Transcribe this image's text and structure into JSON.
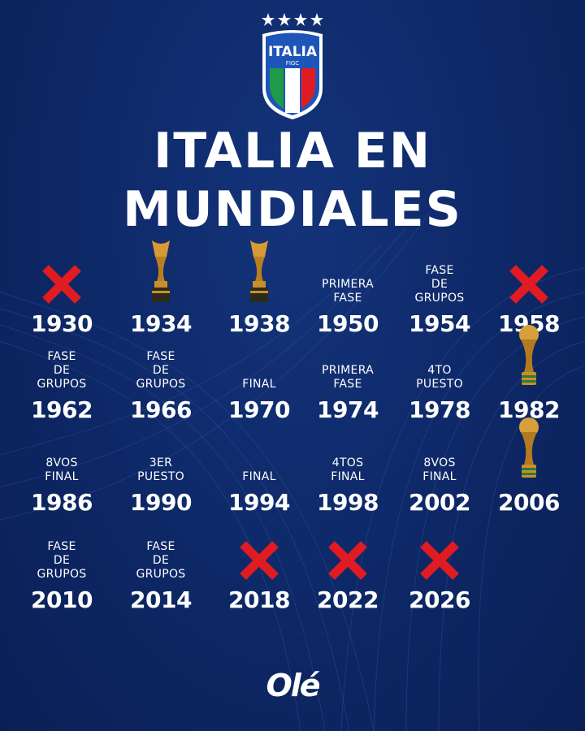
{
  "header": {
    "crest_text": "ITALIA",
    "crest_sub": "FIGC",
    "stars": 4,
    "title_line1": "ITALIA EN",
    "title_line2": "MUNDIALES"
  },
  "colors": {
    "background": "#0e2968",
    "cross": "#e11b22",
    "trophy": "#c8902a"
  },
  "editions": [
    {
      "year": "1930",
      "icon": "cross-icon"
    },
    {
      "year": "1934",
      "icon": "jules-rimet-trophy-icon"
    },
    {
      "year": "1938",
      "icon": "jules-rimet-trophy-icon"
    },
    {
      "year": "1950",
      "label": "PRIMERA FASE"
    },
    {
      "year": "1954",
      "label": "FASE DE GRUPOS"
    },
    {
      "year": "1958",
      "icon": "cross-icon"
    },
    {
      "year": "1962",
      "label": "FASE DE GRUPOS"
    },
    {
      "year": "1966",
      "label": "FASE DE GRUPOS"
    },
    {
      "year": "1970",
      "label": "FINAL"
    },
    {
      "year": "1974",
      "label": "PRIMERA FASE"
    },
    {
      "year": "1978",
      "label": "4TO PUESTO"
    },
    {
      "year": "1982",
      "icon": "world-cup-trophy-icon"
    },
    {
      "year": "1986",
      "label": "8VOS FINAL"
    },
    {
      "year": "1990",
      "label": "3ER PUESTO"
    },
    {
      "year": "1994",
      "label": "FINAL"
    },
    {
      "year": "1998",
      "label": "4TOS FINAL"
    },
    {
      "year": "2002",
      "label": "8VOS FINAL"
    },
    {
      "year": "2006",
      "icon": "world-cup-trophy-icon"
    },
    {
      "year": "2010",
      "label": "FASE DE GRUPOS"
    },
    {
      "year": "2014",
      "label": "FASE DE GRUPOS"
    },
    {
      "year": "2018",
      "icon": "cross-icon"
    },
    {
      "year": "2022",
      "icon": "cross-icon"
    },
    {
      "year": "2026",
      "icon": "cross-icon"
    }
  ],
  "footer": {
    "logo": "Olé"
  }
}
